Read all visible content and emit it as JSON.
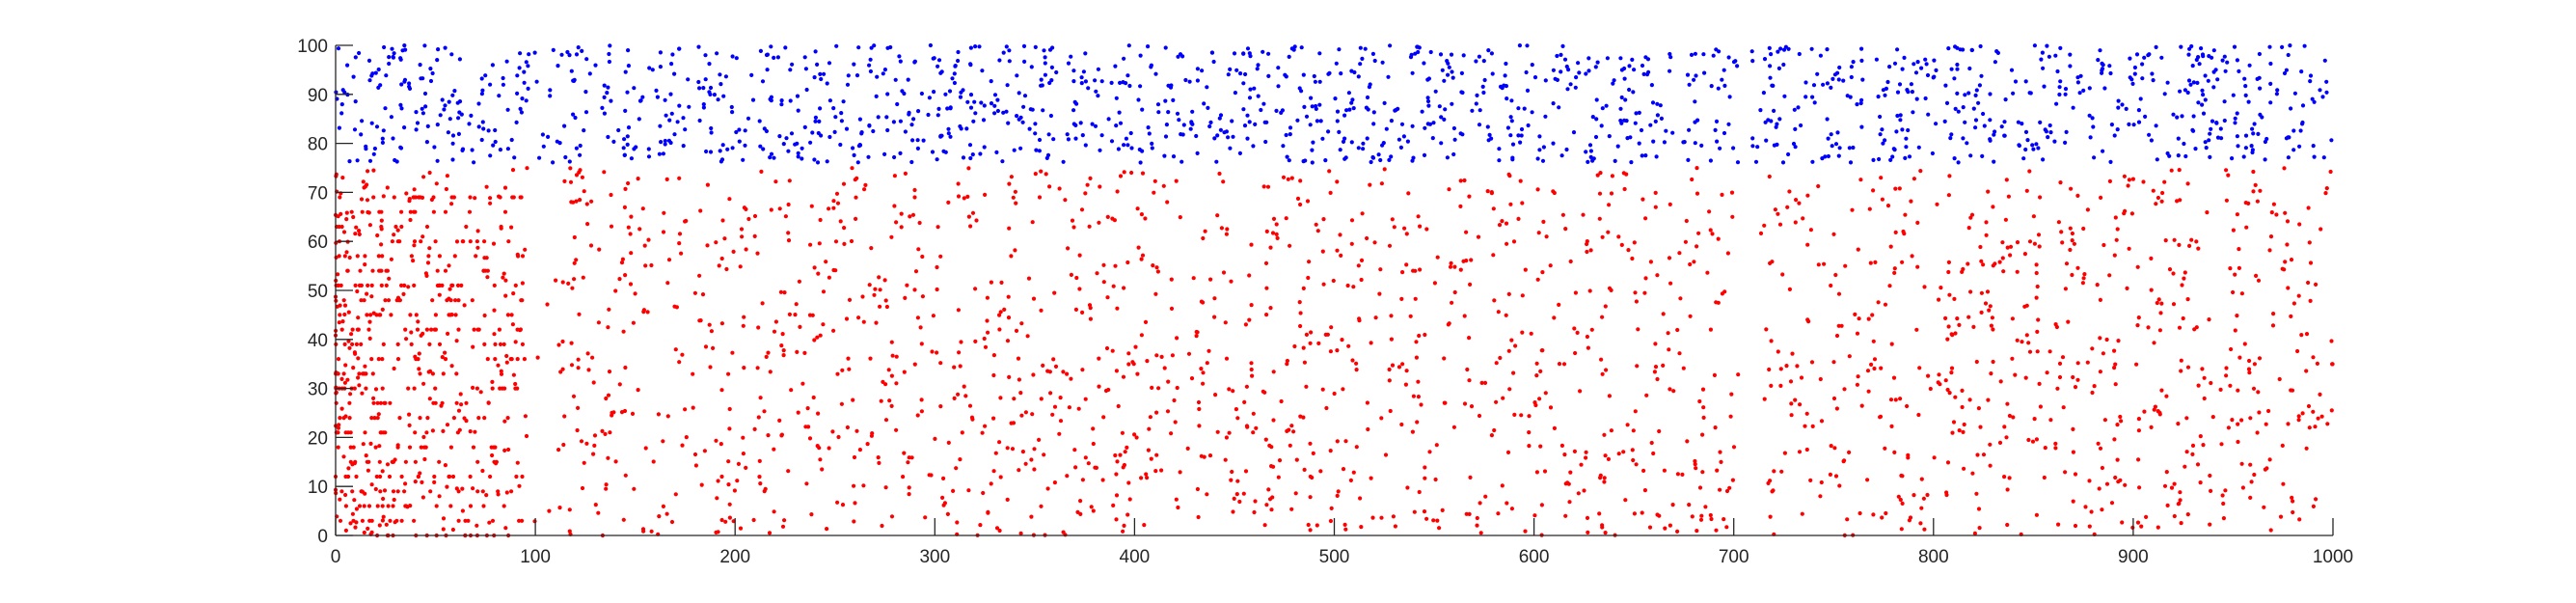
{
  "chart_data": {
    "type": "scatter",
    "title": "",
    "xlabel": "",
    "ylabel": "",
    "xlim": [
      0,
      1000
    ],
    "ylim": [
      0,
      100
    ],
    "xticks": [
      0,
      100,
      200,
      300,
      400,
      500,
      600,
      700,
      800,
      900,
      1000
    ],
    "yticks": [
      0,
      10,
      20,
      30,
      40,
      50,
      60,
      70,
      80,
      90,
      100
    ],
    "xtick_labels": [
      "0",
      "100",
      "200",
      "300",
      "400",
      "500",
      "600",
      "700",
      "800",
      "900",
      "1000"
    ],
    "ytick_labels": [
      "0",
      "10",
      "20",
      "30",
      "40",
      "50",
      "60",
      "70",
      "80",
      "90",
      "100"
    ],
    "grid": false,
    "legend": "none",
    "series": [
      {
        "color": "#0000ff",
        "y_range": [
          76,
          100
        ],
        "x_range": [
          0,
          1000
        ],
        "approx_point_count": 1500
      },
      {
        "color": "#ff0000",
        "y_range": [
          0,
          75
        ],
        "x_range": [
          0,
          1000
        ],
        "approx_point_count": 2600
      }
    ]
  }
}
